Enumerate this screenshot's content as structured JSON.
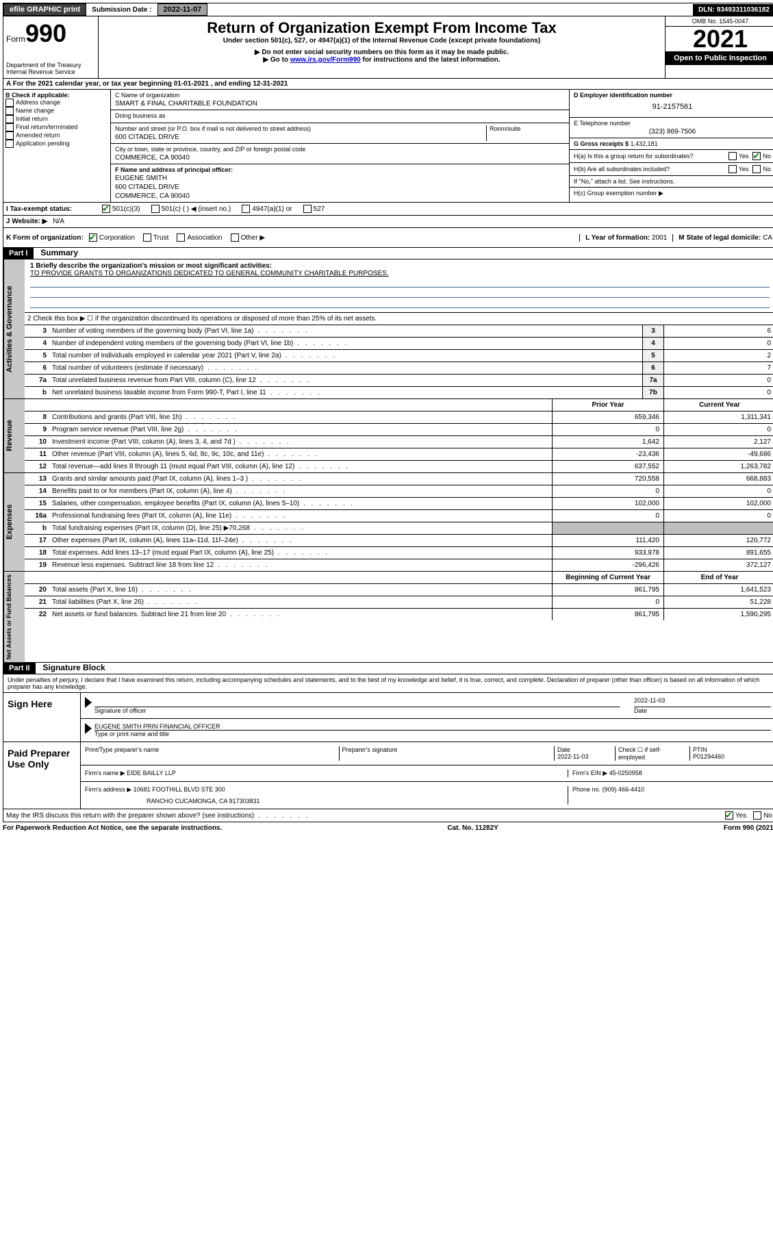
{
  "topbar": {
    "efile": "efile GRAPHIC print",
    "submission_label": "Submission Date :",
    "submission_date": "2022-11-07",
    "dln_label": "DLN:",
    "dln": "93493311036182"
  },
  "header": {
    "form_prefix": "Form",
    "form_number": "990",
    "dept": "Department of the Treasury",
    "irs": "Internal Revenue Service",
    "title": "Return of Organization Exempt From Income Tax",
    "subtitle": "Under section 501(c), 527, or 4947(a)(1) of the Internal Revenue Code (except private foundations)",
    "instr1": "▶ Do not enter social security numbers on this form as it may be made public.",
    "instr2_pre": "▶ Go to ",
    "instr2_link": "www.irs.gov/Form990",
    "instr2_post": " for instructions and the latest information.",
    "omb": "OMB No. 1545-0047",
    "year": "2021",
    "open": "Open to Public Inspection"
  },
  "row_a": "A For the 2021 calendar year, or tax year beginning 01-01-2021  , and ending 12-31-2021",
  "col_b": {
    "label": "B Check if applicable:",
    "items": [
      "Address change",
      "Name change",
      "Initial return",
      "Final return/terminated",
      "Amended return",
      "Application pending"
    ]
  },
  "col_c": {
    "name_label": "C Name of organization",
    "name": "SMART & FINAL CHARITABLE FOUNDATION",
    "dba_label": "Doing business as",
    "dba": "",
    "addr_label": "Number and street (or P.O. box if mail is not delivered to street address)",
    "room_label": "Room/suite",
    "addr": "600 CITADEL DRIVE",
    "city_label": "City or town, state or province, country, and ZIP or foreign postal code",
    "city": "COMMERCE, CA  90040",
    "f_label": "F Name and address of principal officer:",
    "officer_name": "EUGENE SMITH",
    "officer_addr1": "600 CITADEL DRIVE",
    "officer_addr2": "COMMERCE, CA  90040"
  },
  "col_d": {
    "ein_label": "D Employer identification number",
    "ein": "91-2157561",
    "tel_label": "E Telephone number",
    "tel": "(323) 869-7506",
    "gross_label": "G Gross receipts $",
    "gross": "1,432,181",
    "ha_label": "H(a)  Is this a group return for subordinates?",
    "hb_label": "H(b)  Are all subordinates included?",
    "hb_note": "If \"No,\" attach a list. See instructions.",
    "hc_label": "H(c)  Group exemption number ▶",
    "yes": "Yes",
    "no": "No"
  },
  "row_i": {
    "label": "I  Tax-exempt status:",
    "opt1": "501(c)(3)",
    "opt2": "501(c) (  ) ◀ (insert no.)",
    "opt3": "4947(a)(1) or",
    "opt4": "527"
  },
  "row_j": {
    "label": "J  Website: ▶",
    "value": "N/A"
  },
  "row_k": {
    "label": "K Form of organization:",
    "opts": [
      "Corporation",
      "Trust",
      "Association",
      "Other ▶"
    ],
    "l_label": "L Year of formation:",
    "l_val": "2001",
    "m_label": "M State of legal domicile:",
    "m_val": "CA"
  },
  "part1": {
    "header": "Part I",
    "title": "Summary",
    "line1_label": "1  Briefly describe the organization's mission or most significant activities:",
    "mission": "TO PROVIDE GRANTS TO ORGANIZATIONS DEDICATED TO GENERAL COMMUNITY CHARITABLE PURPOSES.",
    "line2": "2  Check this box ▶ ☐  if the organization discontinued its operations or disposed of more than 25% of its net assets.",
    "lines_gov": [
      {
        "n": "3",
        "t": "Number of voting members of the governing body (Part VI, line 1a)",
        "box": "3",
        "v": "6"
      },
      {
        "n": "4",
        "t": "Number of independent voting members of the governing body (Part VI, line 1b)",
        "box": "4",
        "v": "0"
      },
      {
        "n": "5",
        "t": "Total number of individuals employed in calendar year 2021 (Part V, line 2a)",
        "box": "5",
        "v": "2"
      },
      {
        "n": "6",
        "t": "Total number of volunteers (estimate if necessary)",
        "box": "6",
        "v": "7"
      },
      {
        "n": "7a",
        "t": "Total unrelated business revenue from Part VIII, column (C), line 12",
        "box": "7a",
        "v": "0"
      },
      {
        "n": "b",
        "t": "Net unrelated business taxable income from Form 990-T, Part I, line 11",
        "box": "7b",
        "v": "0"
      }
    ],
    "py_label": "Prior Year",
    "cy_label": "Current Year",
    "lines_rev": [
      {
        "n": "8",
        "t": "Contributions and grants (Part VIII, line 1h)",
        "p": "659,346",
        "c": "1,311,341"
      },
      {
        "n": "9",
        "t": "Program service revenue (Part VIII, line 2g)",
        "p": "0",
        "c": "0"
      },
      {
        "n": "10",
        "t": "Investment income (Part VIII, column (A), lines 3, 4, and 7d )",
        "p": "1,642",
        "c": "2,127"
      },
      {
        "n": "11",
        "t": "Other revenue (Part VIII, column (A), lines 5, 6d, 8c, 9c, 10c, and 11e)",
        "p": "-23,436",
        "c": "-49,686"
      },
      {
        "n": "12",
        "t": "Total revenue—add lines 8 through 11 (must equal Part VIII, column (A), line 12)",
        "p": "637,552",
        "c": "1,263,782"
      }
    ],
    "lines_exp": [
      {
        "n": "13",
        "t": "Grants and similar amounts paid (Part IX, column (A), lines 1–3 )",
        "p": "720,558",
        "c": "668,883"
      },
      {
        "n": "14",
        "t": "Benefits paid to or for members (Part IX, column (A), line 4)",
        "p": "0",
        "c": "0"
      },
      {
        "n": "15",
        "t": "Salaries, other compensation, employee benefits (Part IX, column (A), lines 5–10)",
        "p": "102,000",
        "c": "102,000"
      },
      {
        "n": "16a",
        "t": "Professional fundraising fees (Part IX, column (A), line 11e)",
        "p": "0",
        "c": "0"
      },
      {
        "n": "b",
        "t": "Total fundraising expenses (Part IX, column (D), line 25) ▶70,268",
        "p": "",
        "c": "",
        "gray": true
      },
      {
        "n": "17",
        "t": "Other expenses (Part IX, column (A), lines 11a–11d, 11f–24e)",
        "p": "111,420",
        "c": "120,772"
      },
      {
        "n": "18",
        "t": "Total expenses. Add lines 13–17 (must equal Part IX, column (A), line 25)",
        "p": "933,978",
        "c": "891,655"
      },
      {
        "n": "19",
        "t": "Revenue less expenses. Subtract line 18 from line 12",
        "p": "-296,426",
        "c": "372,127"
      }
    ],
    "by_label": "Beginning of Current Year",
    "ey_label": "End of Year",
    "lines_net": [
      {
        "n": "20",
        "t": "Total assets (Part X, line 16)",
        "p": "861,795",
        "c": "1,641,523"
      },
      {
        "n": "21",
        "t": "Total liabilities (Part X, line 26)",
        "p": "0",
        "c": "51,228"
      },
      {
        "n": "22",
        "t": "Net assets or fund balances. Subtract line 21 from line 20",
        "p": "861,795",
        "c": "1,590,295"
      }
    ],
    "vtabs": {
      "gov": "Activities & Governance",
      "rev": "Revenue",
      "exp": "Expenses",
      "net": "Net Assets or Fund Balances"
    }
  },
  "part2": {
    "header": "Part II",
    "title": "Signature Block",
    "penalty": "Under penalties of perjury, I declare that I have examined this return, including accompanying schedules and statements, and to the best of my knowledge and belief, it is true, correct, and complete. Declaration of preparer (other than officer) is based on all information of which preparer has any knowledge.",
    "sign_here": "Sign Here",
    "sig_officer_label": "Signature of officer",
    "sig_date": "2022-11-03",
    "date_label": "Date",
    "officer_print": "EUGENE SMITH  PRIN FINANCIAL OFFICER",
    "type_label": "Type or print name and title",
    "paid": "Paid Preparer Use Only",
    "prep_name_label": "Print/Type preparer's name",
    "prep_sig_label": "Preparer's signature",
    "prep_date_label": "Date",
    "prep_date": "2022-11-03",
    "self_emp": "Check ☐ if self-employed",
    "ptin_label": "PTIN",
    "ptin": "P01294460",
    "firm_name_label": "Firm's name   ▶",
    "firm_name": "EIDE BAILLY LLP",
    "firm_ein_label": "Firm's EIN ▶",
    "firm_ein": "45-0250958",
    "firm_addr_label": "Firm's address ▶",
    "firm_addr1": "10681 FOOTHILL BLVD STE 300",
    "firm_addr2": "RANCHO CUCAMONGA, CA  917303831",
    "phone_label": "Phone no.",
    "phone": "(909) 466-4410",
    "discuss": "May the IRS discuss this return with the preparer shown above? (see instructions)",
    "yes": "Yes",
    "no": "No"
  },
  "footer": {
    "left": "For Paperwork Reduction Act Notice, see the separate instructions.",
    "mid": "Cat. No. 11282Y",
    "right": "Form 990 (2021)"
  }
}
